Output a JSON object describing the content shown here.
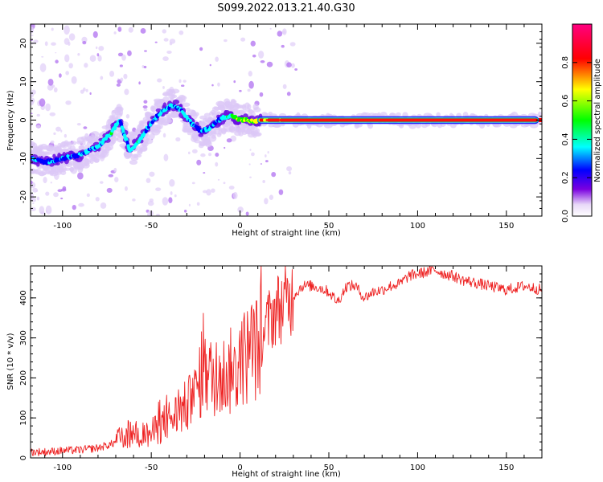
{
  "title": "S099.2022.013.21.40.G30",
  "chart_data": [
    {
      "type": "heatmap",
      "xlabel": "Height of straight line (km)",
      "ylabel": "Frequency (Hz)",
      "xlim": [
        -118,
        170
      ],
      "ylim": [
        -25,
        25
      ],
      "x_ticks": [
        -100,
        -50,
        0,
        50,
        100,
        150
      ],
      "y_ticks": [
        -20,
        -10,
        0,
        10,
        20
      ],
      "colorbar": {
        "label": "Normalized spectral amplitude",
        "range": [
          0,
          1
        ],
        "ticks": [
          0.0,
          0.2,
          0.4,
          0.6,
          0.8
        ],
        "colormap": [
          "#e8d8f8",
          "#7a00e0",
          "#0000ff",
          "#00ffff",
          "#00ff00",
          "#ffff00",
          "#ff0000",
          "#ff0080"
        ]
      },
      "ridge": {
        "x": [
          -118,
          -110,
          -100,
          -90,
          -80,
          -72,
          -68,
          -62,
          -58,
          -52,
          -47,
          -42,
          -37,
          -32,
          -27,
          -22,
          -17,
          -12,
          -8,
          -4,
          0,
          4,
          8,
          12,
          50,
          100,
          170
        ],
        "y": [
          -10,
          -11,
          -10,
          -9,
          -7,
          -3,
          0,
          -8,
          -6,
          -2,
          1,
          3,
          4,
          2,
          -1,
          -3,
          -2,
          0,
          1,
          1,
          0,
          0,
          -0.5,
          0,
          0,
          0,
          0
        ],
        "amp": [
          0.35,
          0.3,
          0.35,
          0.35,
          0.4,
          0.45,
          0.4,
          0.4,
          0.45,
          0.4,
          0.35,
          0.4,
          0.4,
          0.4,
          0.35,
          0.35,
          0.35,
          0.35,
          0.45,
          0.55,
          0.6,
          0.6,
          0.65,
          0.8,
          0.85,
          0.85,
          0.85
        ]
      }
    },
    {
      "type": "line",
      "xlabel": "Height of straight line (km)",
      "ylabel": "SNR (10 * v/v)",
      "xlim": [
        -118,
        170
      ],
      "ylim": [
        0,
        480
      ],
      "x_ticks": [
        -100,
        -50,
        0,
        50,
        100,
        150
      ],
      "y_ticks": [
        0,
        100,
        200,
        300,
        400
      ],
      "color": "#ee2222",
      "series": [
        {
          "x": [
            -118,
            -110,
            -100,
            -90,
            -80,
            -72,
            -65,
            -60,
            -55,
            -50,
            -45,
            -40,
            -35,
            -30,
            -26,
            -24,
            -20,
            -15,
            -12,
            -8,
            -4,
            0,
            4,
            8,
            10,
            12,
            16,
            20,
            25,
            30,
            35,
            40,
            45,
            50,
            55,
            60,
            65,
            70,
            75,
            80,
            85,
            90,
            95,
            100,
            105,
            110,
            115,
            120,
            125,
            130,
            135,
            140,
            145,
            150,
            155,
            160,
            165,
            170
          ],
          "y": [
            15,
            15,
            18,
            20,
            25,
            35,
            55,
            60,
            55,
            60,
            80,
            95,
            110,
            130,
            150,
            175,
            210,
            200,
            190,
            215,
            200,
            240,
            260,
            280,
            270,
            300,
            340,
            370,
            385,
            405,
            430,
            430,
            425,
            415,
            390,
            430,
            430,
            400,
            415,
            420,
            430,
            435,
            455,
            460,
            465,
            470,
            460,
            455,
            445,
            440,
            435,
            430,
            425,
            420,
            425,
            430,
            425,
            420
          ]
        }
      ]
    }
  ]
}
